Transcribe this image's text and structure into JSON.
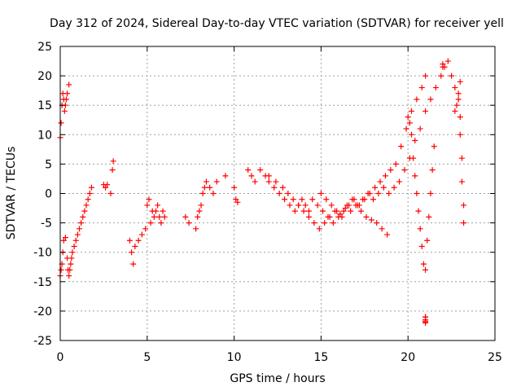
{
  "chart_data": {
    "type": "scatter",
    "title": "Day 312 of 2024, Sidereal Day-to-day VTEC variation (SDTVAR) for receiver yell",
    "xlabel": "GPS time / hours",
    "ylabel": "SDTVAR / TECUs",
    "xlim": [
      0,
      25
    ],
    "ylim": [
      -25,
      25
    ],
    "xticks": [
      "0",
      "5",
      "10",
      "15",
      "20",
      "25"
    ],
    "yticks": [
      "25",
      "20",
      "15",
      "10",
      "5",
      "0",
      "-5",
      "-10",
      "-15",
      "-20",
      "-25"
    ],
    "grid": true,
    "marker": "plus",
    "color": "#ff0000",
    "series": [
      {
        "name": "SDTVAR",
        "x": [
          0.0,
          0.05,
          0.1,
          0.15,
          0.2,
          0.3,
          0.4,
          0.45,
          0.5,
          0.55,
          0.6,
          0.65,
          0.7,
          0.8,
          0.9,
          1.0,
          1.1,
          1.2,
          1.3,
          1.4,
          1.5,
          1.6,
          1.7,
          1.8,
          0.0,
          0.05,
          0.1,
          0.15,
          0.2,
          0.25,
          0.3,
          0.35,
          0.4,
          0.5,
          2.5,
          2.6,
          2.7,
          2.9,
          3.0,
          3.05,
          4.0,
          4.1,
          4.2,
          4.3,
          4.5,
          4.7,
          4.9,
          5.0,
          5.1,
          5.2,
          5.3,
          5.4,
          5.5,
          5.6,
          5.7,
          5.8,
          5.9,
          6.0,
          7.2,
          7.4,
          7.8,
          7.9,
          8.0,
          8.1,
          8.2,
          8.3,
          8.4,
          8.6,
          8.8,
          9.0,
          9.5,
          10.0,
          10.1,
          10.2,
          10.8,
          11.0,
          11.2,
          11.5,
          11.8,
          12.0,
          12.3,
          12.6,
          12.9,
          13.2,
          13.5,
          13.7,
          13.9,
          14.1,
          14.3,
          12.0,
          12.4,
          12.8,
          13.1,
          13.4,
          13.7,
          14.0,
          14.3,
          14.6,
          14.9,
          15.2,
          15.5,
          15.8,
          16.1,
          16.4,
          16.7,
          17.0,
          17.3,
          17.6,
          17.9,
          18.2,
          18.5,
          18.8,
          14.5,
          14.8,
          15.1,
          15.4,
          15.7,
          16.0,
          16.3,
          16.6,
          16.9,
          17.2,
          17.5,
          17.8,
          18.1,
          18.4,
          18.7,
          19.0,
          19.3,
          19.6,
          19.9,
          20.2,
          20.5,
          20.8,
          21.0,
          15.0,
          15.3,
          15.6,
          15.9,
          16.2,
          16.5,
          16.8,
          17.1,
          17.4,
          17.7,
          18.0,
          18.3,
          18.6,
          18.9,
          19.2,
          19.5,
          19.8,
          20.1,
          20.4,
          20.7,
          21.0,
          21.3,
          21.6,
          21.9,
          22.1,
          20.0,
          20.1,
          20.2,
          20.3,
          20.4,
          20.5,
          20.6,
          20.7,
          20.8,
          20.9,
          21.0,
          21.1,
          21.2,
          21.3,
          21.4,
          21.5,
          21.0,
          21.0,
          21.0,
          21.0,
          21.0,
          21.0,
          22.0,
          22.0,
          22.3,
          22.5,
          22.7,
          22.9,
          23.0,
          23.0,
          23.1,
          23.1,
          23.2,
          23.2,
          22.7,
          22.8,
          22.9,
          23.0
        ],
        "y": [
          -14,
          -13,
          -12,
          -10,
          -8,
          -7.5,
          -11,
          -13,
          -14,
          -13,
          -12,
          -11,
          -10,
          -9,
          -8,
          -7,
          -6,
          -5,
          -4,
          -3,
          -2,
          -1,
          0,
          1,
          9.5,
          12,
          15,
          17,
          16,
          14,
          15,
          16,
          17,
          18.5,
          1.5,
          1,
          1.5,
          0,
          4,
          5.5,
          -8,
          -10,
          -12,
          -9,
          -8,
          -7,
          -6,
          -2,
          -1,
          -5,
          -3,
          -4,
          -3,
          -2,
          -4,
          -5,
          -3,
          -4,
          -4,
          -5,
          -6,
          -4,
          -3,
          -2,
          0,
          1,
          2,
          1,
          0,
          2,
          3,
          1,
          -1,
          -1.5,
          4,
          3,
          2,
          4,
          3,
          2,
          1,
          0,
          -1,
          -2,
          -3,
          -2,
          -1,
          -2,
          -3,
          3,
          2,
          1,
          0,
          -1,
          -2,
          -3,
          -4,
          -5,
          -6,
          -5,
          -4,
          -3,
          -3.5,
          -2.5,
          -3,
          -2,
          -3,
          -4,
          -4.5,
          -5,
          -6,
          -7,
          -1,
          -2,
          -3,
          -4,
          -5,
          -4,
          -3,
          -2,
          -1,
          -2,
          -1,
          0,
          1,
          2,
          3,
          4,
          5,
          8,
          11,
          14,
          16,
          18,
          20,
          0,
          -1,
          -2,
          -3,
          -4,
          -2,
          -1,
          -2,
          -1,
          0,
          -1,
          0,
          1,
          0,
          1,
          2,
          4,
          6,
          9,
          11,
          14,
          16,
          18,
          20,
          21.5,
          13,
          12,
          10,
          6,
          3,
          0,
          -3,
          -6,
          -9,
          -12,
          -13,
          -8,
          -4,
          0,
          4,
          8,
          -21.5,
          -21,
          -22,
          -21.5,
          -21,
          -21.8,
          22,
          21.5,
          22.5,
          20,
          18,
          16,
          13,
          10,
          6,
          2,
          -2,
          -5,
          14,
          15,
          17,
          19
        ]
      }
    ]
  }
}
